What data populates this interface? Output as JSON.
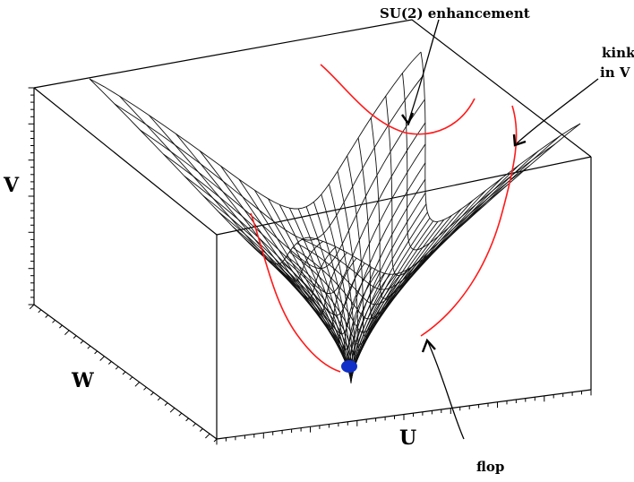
{
  "figure": {
    "axes": {
      "v": "V",
      "w": "W",
      "u": "U"
    },
    "annotations": {
      "su2": "SU(2) enhancement",
      "kink_line1": "kink",
      "kink_line2": "in V",
      "flop": "flop"
    },
    "colors": {
      "mesh": "#111111",
      "curve": "#ff1a1a",
      "point": "#1030c8",
      "frame": "#000000"
    }
  }
}
